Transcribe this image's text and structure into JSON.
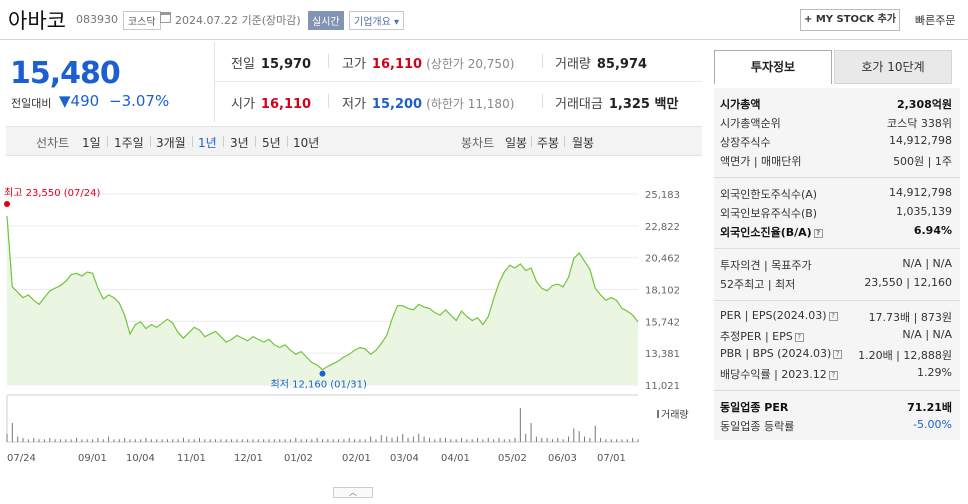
{
  "header": {
    "name": "아바코",
    "code": "083930",
    "market": "코스닥",
    "date": "2024.07.22  기준(장마감)",
    "realtime": "실시간",
    "company_outline": "기업개요",
    "my_stock": "+ MY STOCK 추가",
    "quick_order": "빠른주문"
  },
  "price": {
    "current": "15,480",
    "change_label": "전일대비",
    "change_value": "490",
    "change_pct": "−3.07%"
  },
  "stats": {
    "prev_label": "전일",
    "prev": "15,970",
    "high_label": "고가",
    "high": "16,110",
    "upper_limit": "(상한가 20,750)",
    "volume_label": "거래량",
    "volume": "85,974",
    "open_label": "시가",
    "open": "16,110",
    "low_label": "저가",
    "low": "15,200",
    "lower_limit": "(하한가 11,180)",
    "amount_label": "거래대금",
    "amount": "1,325 백만"
  },
  "toolbar": {
    "line_label": "선차트",
    "periods": [
      "1일",
      "1주일",
      "3개월",
      "1년",
      "3년",
      "5년",
      "10년"
    ],
    "selected": "1년",
    "candle_label": "봉차트",
    "candles": [
      "일봉",
      "주봉",
      "월봉"
    ]
  },
  "chart_data": {
    "type": "area",
    "y_ticks": [
      "25,183",
      "22,822",
      "20,462",
      "18,102",
      "15,742",
      "13,381",
      "11,021"
    ],
    "ylim": [
      11021,
      25183
    ],
    "x_ticks": [
      "07/24",
      "09/01",
      "10/04",
      "11/01",
      "12/01",
      "01/02",
      "02/01",
      "03/04",
      "04/01",
      "05/02",
      "06/03",
      "07/01"
    ],
    "values": [
      23550,
      18300,
      17900,
      17500,
      17700,
      17300,
      17000,
      17500,
      18000,
      18200,
      18400,
      18700,
      19200,
      19300,
      19100,
      19400,
      19300,
      18200,
      17400,
      17700,
      17500,
      17100,
      16200,
      14800,
      15500,
      15700,
      15200,
      15500,
      15300,
      15600,
      15900,
      15600,
      14900,
      14500,
      14900,
      15300,
      15100,
      14600,
      14800,
      15000,
      14600,
      14200,
      14400,
      14700,
      14500,
      14300,
      14600,
      14400,
      14200,
      14400,
      14000,
      13800,
      14000,
      13600,
      13300,
      13500,
      13100,
      12700,
      12500,
      12160,
      12400,
      12600,
      12800,
      13100,
      13300,
      13600,
      13800,
      13700,
      13300,
      13600,
      14100,
      14700,
      15900,
      16900,
      16900,
      16700,
      16600,
      17000,
      16800,
      16700,
      16400,
      16200,
      16600,
      16200,
      15800,
      16500,
      16100,
      15800,
      16000,
      15500,
      16100,
      17400,
      18600,
      19400,
      19900,
      19700,
      20000,
      19500,
      19700,
      18700,
      18200,
      18000,
      18400,
      18500,
      18300,
      19000,
      20400,
      20800,
      20200,
      19600,
      18200,
      17700,
      17300,
      17500,
      17300,
      16700,
      16500,
      16200,
      15700
    ],
    "max_label": "최고 23,550 (07/24)",
    "min_label": "최저 12,160 (01/31)",
    "volume_label": "거래량",
    "volumes": [
      6,
      14,
      4,
      3,
      2,
      3,
      2,
      2,
      3,
      2,
      2,
      2,
      2,
      3,
      2,
      2,
      2,
      3,
      2,
      4,
      2,
      2,
      3,
      2,
      2,
      2,
      3,
      2,
      2,
      2,
      2,
      2,
      2,
      3,
      2,
      2,
      3,
      2,
      2,
      2,
      2,
      2,
      2,
      2,
      2,
      2,
      2,
      2,
      2,
      2,
      2,
      2,
      2,
      2,
      3,
      2,
      2,
      2,
      3,
      2,
      2,
      2,
      2,
      2,
      3,
      2,
      2,
      2,
      4,
      2,
      5,
      4,
      3,
      4,
      6,
      3,
      4,
      6,
      4,
      3,
      2,
      3,
      3,
      2,
      2,
      3,
      2,
      2,
      3,
      2,
      3,
      2,
      3,
      2,
      2,
      3,
      25,
      6,
      14,
      4,
      3,
      3,
      2,
      3,
      2,
      4,
      10,
      8,
      4,
      3,
      12,
      3,
      2,
      2,
      2,
      2,
      2,
      3,
      2
    ],
    "colors": {
      "line": "#72c43c",
      "fill": "#eaf6e1",
      "max": "#e0001a",
      "min": "#1c5fcf"
    }
  },
  "side": {
    "tab_active": "투자정보",
    "tab_other": "호가 10단계",
    "rows": [
      {
        "l": "시가총액",
        "r": "2,308억원",
        "bold": true
      },
      {
        "l": "시가총액순위",
        "r": "코스닥 338위"
      },
      {
        "l": "상장주식수",
        "r": "14,912,798"
      },
      {
        "l": "액면가 | 매매단위",
        "r": "500원 | 1주"
      },
      {
        "l": "외국인한도주식수(A)",
        "r": "14,912,798"
      },
      {
        "l": "외국인보유주식수(B)",
        "r": "1,035,139"
      },
      {
        "l": "외국인소진율(B/A)",
        "r": "6.94%",
        "bold": true,
        "box": true
      },
      {
        "l": "투자의견 | 목표주가",
        "r": "N/A | N/A"
      },
      {
        "l": "52주최고 | 최저",
        "r": "23,550 | 12,160"
      },
      {
        "l": "PER | EPS(2024.03)",
        "r": "17.73배 | 873원",
        "box": true
      },
      {
        "l": "추정PER | EPS",
        "r": "N/A | N/A",
        "box": true
      },
      {
        "l": "PBR | BPS (2024.03)",
        "r": "1.20배 | 12,888원",
        "box": true
      },
      {
        "l": "배당수익률 | 2023.12",
        "r": "1.29%",
        "box": true
      },
      {
        "l": "동일업종 PER",
        "r": "71.21배",
        "bold": true
      },
      {
        "l": "동일업종 등락률",
        "r": "-5.00%",
        "blue": true
      }
    ]
  }
}
